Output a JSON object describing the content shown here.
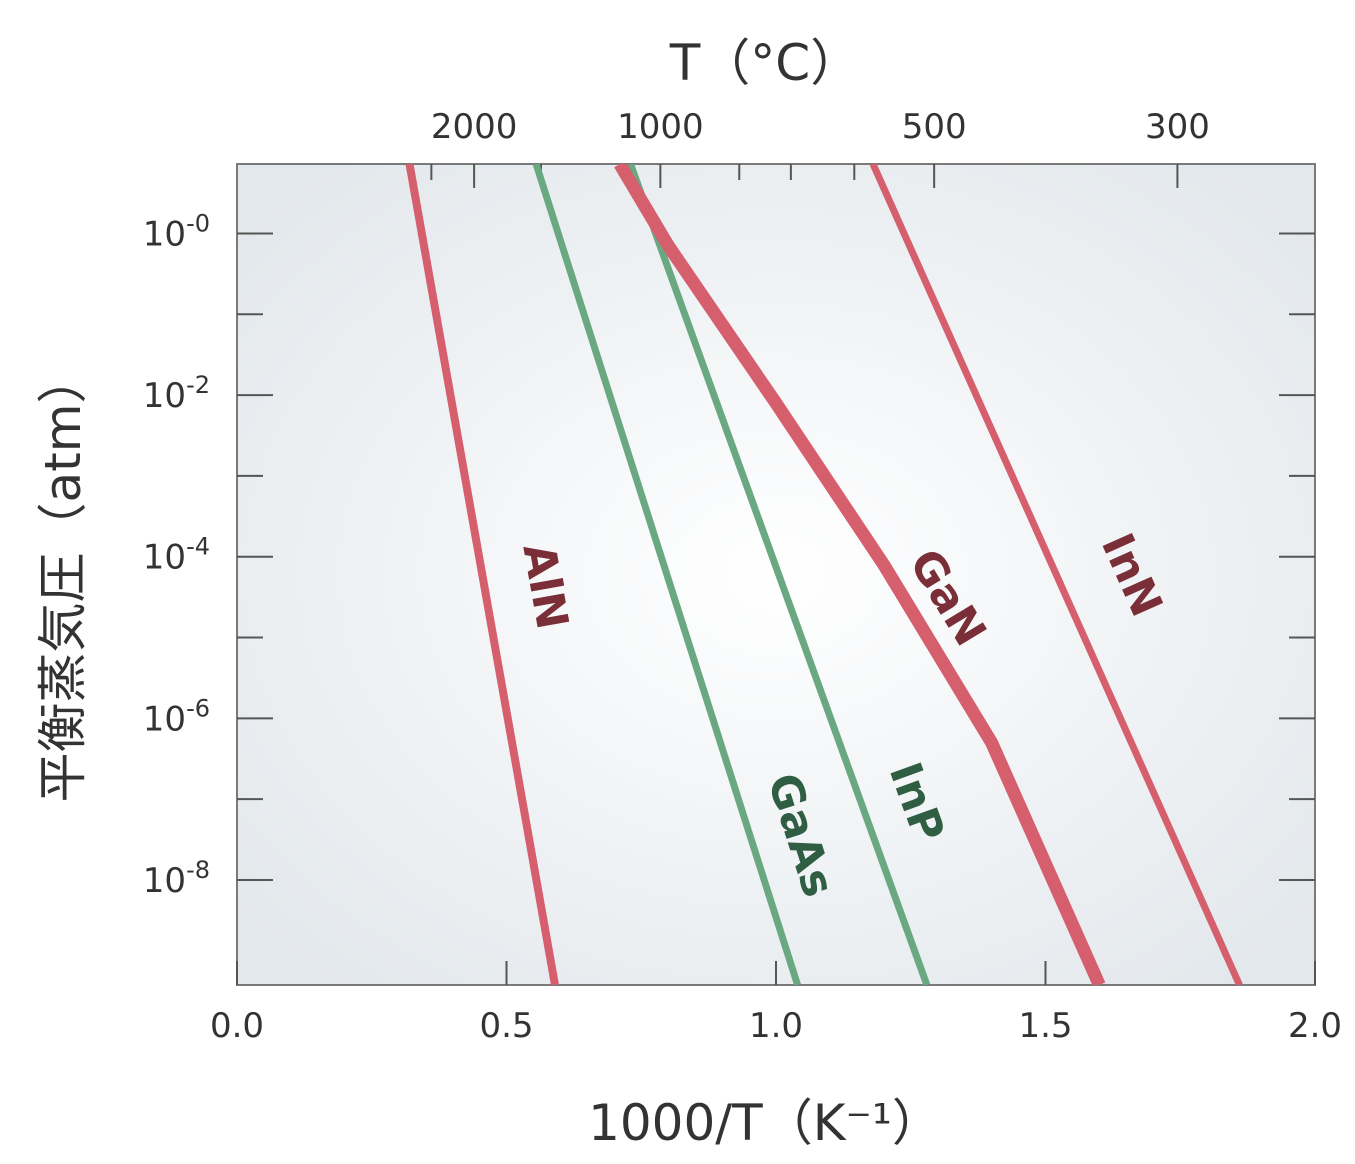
{
  "chart_data": {
    "type": "line",
    "xlabel": "1000/T（K⁻¹）",
    "x2label": "T（°C）",
    "ylabel": "平衡蒸気圧（atm）",
    "xlim": [
      0.0,
      2.0
    ],
    "ylim_log10": [
      -9.3,
      0.86
    ],
    "x_ticks": [
      {
        "value": 0.0,
        "label": "0.0"
      },
      {
        "value": 0.5,
        "label": "0.5"
      },
      {
        "value": 1.0,
        "label": "1.0"
      },
      {
        "value": 1.5,
        "label": "1.5"
      },
      {
        "value": 2.0,
        "label": "2.0"
      }
    ],
    "x2_ticks_celsius": [
      {
        "celsius": 2000,
        "label": "2000"
      },
      {
        "celsius": 1000,
        "label": "1000"
      },
      {
        "celsius": 500,
        "label": "500"
      },
      {
        "celsius": 300,
        "label": "300"
      }
    ],
    "x2_minor_ticks_celsius": [
      2500,
      1500,
      800,
      700,
      600
    ],
    "y_ticks": [
      {
        "exp": 0,
        "label": "10",
        "sup": "-0"
      },
      {
        "exp": -2,
        "label": "10",
        "sup": "-2"
      },
      {
        "exp": -4,
        "label": "10",
        "sup": "-4"
      },
      {
        "exp": -6,
        "label": "10",
        "sup": "-6"
      },
      {
        "exp": -8,
        "label": "10",
        "sup": "-8"
      }
    ],
    "y_minor_ticks_exp": [
      -1,
      -3,
      -5,
      -7
    ],
    "grid": false,
    "series": [
      {
        "name": "AlN",
        "color": "#d65f6e",
        "label_color": "#7a2e38",
        "width": 8,
        "x": [
          0.32,
          0.59
        ],
        "log10_p": [
          0.86,
          -9.3
        ],
        "label_pos": {
          "x": 0.545,
          "log10_p": -4.4
        }
      },
      {
        "name": "GaAs",
        "color": "#6aa882",
        "label_color": "#2f5e42",
        "width": 7,
        "x": [
          0.555,
          1.04
        ],
        "log10_p": [
          0.86,
          -9.3
        ],
        "label_pos": {
          "x": 1.02,
          "log10_p": -7.5
        }
      },
      {
        "name": "InP",
        "color": "#6aa882",
        "label_color": "#2f5e42",
        "width": 7,
        "x": [
          0.73,
          1.28
        ],
        "log10_p": [
          0.86,
          -9.3
        ],
        "label_pos": {
          "x": 1.235,
          "log10_p": -7.1
        }
      },
      {
        "name": "GaN",
        "color": "#d65f6e",
        "label_color": "#7a2e38",
        "width": 13,
        "x": [
          0.71,
          0.8,
          1.0,
          1.2,
          1.4,
          1.6
        ],
        "log10_p": [
          0.86,
          -0.15,
          -2.1,
          -4.1,
          -6.3,
          -9.3
        ],
        "label_pos": {
          "x": 1.295,
          "log10_p": -4.6
        }
      },
      {
        "name": "InN",
        "color": "#d65f6e",
        "label_color": "#7a2e38",
        "width": 7,
        "x": [
          1.18,
          1.86
        ],
        "log10_p": [
          0.86,
          -9.3
        ],
        "label_pos": {
          "x": 1.635,
          "log10_p": -4.3
        }
      }
    ]
  }
}
